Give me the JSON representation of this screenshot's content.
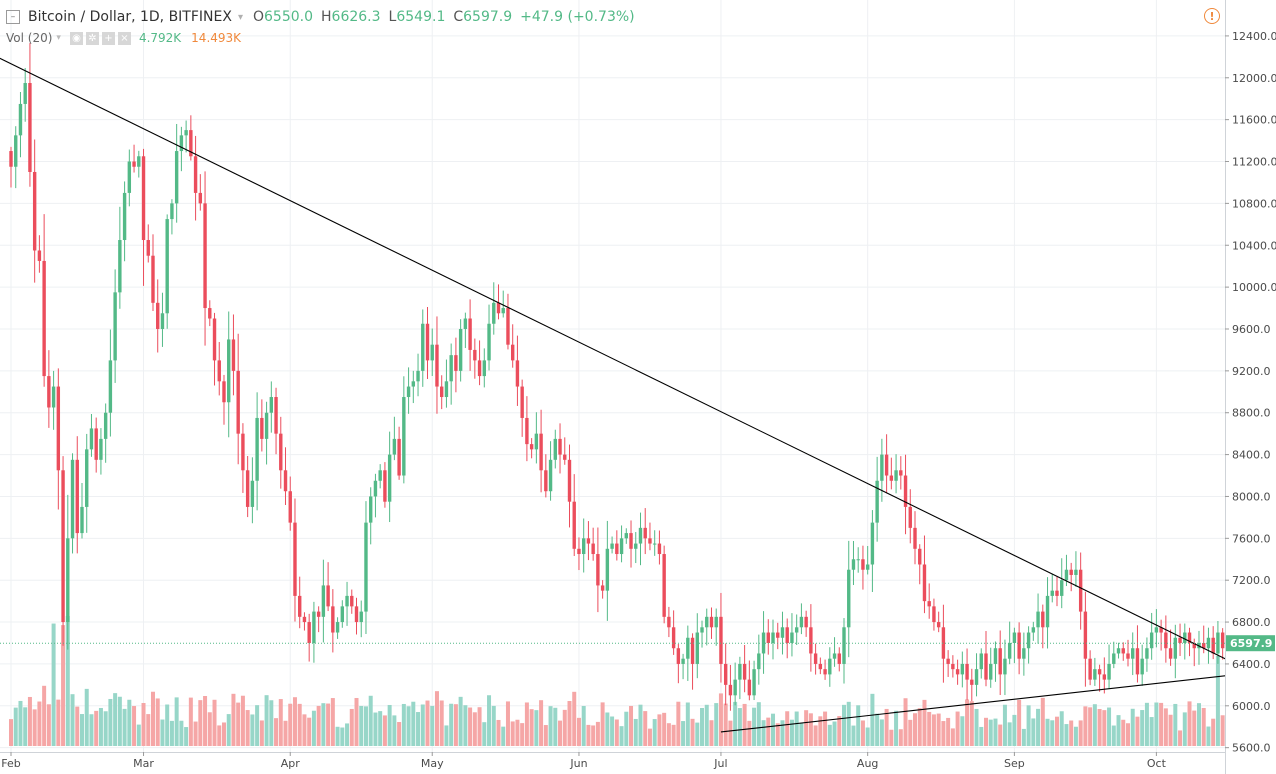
{
  "header": {
    "symbol": "Bitcoin / Dollar, 1D, BITFINEX",
    "open_label": "O",
    "open": "6550.0",
    "high_label": "H",
    "high": "6626.3",
    "low_label": "L",
    "low": "6549.1",
    "close_label": "C",
    "close": "6597.9",
    "change": "+47.9 (+0.73%)"
  },
  "volume_legend": {
    "label": "Vol (20)",
    "value": "4.792K",
    "ma_value": "14.493K",
    "buttons": [
      "eye-icon",
      "gear-icon",
      "plus-icon",
      "close-icon"
    ]
  },
  "price_tag": "6597.9",
  "colors": {
    "up": "#53b987",
    "down": "#eb4d5c",
    "vol_up": "#97d6c8",
    "vol_down": "#f5a6a6",
    "price_line": "#53b987",
    "trendline": "#000000",
    "alert": "#f0893c"
  },
  "chart_data": {
    "type": "candlestick",
    "title": "Bitcoin / Dollar, 1D, BITFINEX",
    "ylim": [
      5400,
      12500
    ],
    "y_ticks": [
      5600,
      6000,
      6400,
      6800,
      7200,
      7600,
      8000,
      8400,
      8800,
      9200,
      9600,
      10000,
      10400,
      10800,
      11200,
      11600,
      12000,
      12400
    ],
    "y_tick_labels": [
      "5600.0",
      "6000.0",
      "6400.0",
      "6800.0",
      "7200.0",
      "7600.0",
      "8000.0",
      "8400.0",
      "8800.0",
      "9200.0",
      "9600.0",
      "10000.0",
      "10400.0",
      "10800.0",
      "11200.0",
      "11600.0",
      "12000.0",
      "12400.0"
    ],
    "x_month_labels": [
      "Feb",
      "Mar",
      "Apr",
      "May",
      "Jun",
      "Jul",
      "Aug",
      "Sep",
      "Oct"
    ],
    "x_month_days": [
      0,
      28,
      59,
      89,
      120,
      150,
      181,
      212,
      242
    ],
    "x_days": 269,
    "current_price": 6597.9,
    "grid": true,
    "closes": [
      11150,
      11450,
      11750,
      11950,
      11100,
      10350,
      10250,
      9150,
      8850,
      9050,
      8250,
      6800,
      7600,
      8350,
      7650,
      7900,
      8450,
      8650,
      8350,
      8550,
      8800,
      9300,
      9950,
      10450,
      10900,
      11200,
      11150,
      11250,
      10450,
      10300,
      9850,
      9600,
      9750,
      10650,
      10800,
      11300,
      11450,
      11500,
      11250,
      10900,
      10800,
      9800,
      9700,
      9300,
      9100,
      8900,
      9500,
      9200,
      8600,
      8250,
      7900,
      8150,
      8750,
      8550,
      8800,
      8950,
      8600,
      8250,
      8050,
      7750,
      7050,
      6850,
      6800,
      6600,
      6900,
      6850,
      7150,
      6950,
      6700,
      6800,
      6950,
      7050,
      6950,
      6800,
      6900,
      7750,
      8000,
      8150,
      8250,
      7950,
      8400,
      8550,
      8200,
      8950,
      9050,
      9100,
      9200,
      9650,
      9300,
      9450,
      9050,
      8950,
      9100,
      9350,
      9200,
      9600,
      9700,
      9400,
      9300,
      9150,
      9300,
      9650,
      9850,
      9750,
      9800,
      9450,
      9300,
      9050,
      8750,
      8500,
      8450,
      8600,
      8250,
      8050,
      8350,
      8550,
      8400,
      8350,
      7950,
      7500,
      7450,
      7600,
      7550,
      7450,
      7150,
      7100,
      7500,
      7550,
      7450,
      7600,
      7650,
      7500,
      7550,
      7700,
      7600,
      7550,
      7550,
      7450,
      6850,
      6750,
      6550,
      6400,
      6450,
      6650,
      6400,
      6700,
      6750,
      6850,
      6750,
      6850,
      6400,
      6200,
      6100,
      6250,
      6400,
      6250,
      6100,
      6350,
      6500,
      6700,
      6600,
      6700,
      6650,
      6750,
      6600,
      6700,
      6750,
      6850,
      6750,
      6500,
      6400,
      6350,
      6300,
      6450,
      6500,
      6400,
      6750,
      7300,
      7400,
      7400,
      7300,
      7350,
      7750,
      8150,
      8400,
      8200,
      8150,
      8250,
      8200,
      7900,
      7700,
      7500,
      7350,
      7000,
      6950,
      6800,
      6750,
      6450,
      6400,
      6350,
      6300,
      6400,
      6250,
      6200,
      6350,
      6500,
      6250,
      6400,
      6550,
      6300,
      6450,
      6600,
      6700,
      6450,
      6550,
      6700,
      6750,
      6900,
      6750,
      7050,
      7100,
      7050,
      7200,
      7300,
      7250,
      7300,
      6900,
      6450,
      6250,
      6350,
      6300,
      6250,
      6400,
      6500,
      6550,
      6500,
      6450,
      6550,
      6300,
      6450,
      6550,
      6700,
      6750,
      6700,
      6550,
      6450,
      6650,
      6600,
      6700,
      6600,
      6550,
      6600,
      6550,
      6650,
      6500,
      6700,
      6550,
      6650,
      6750,
      6600,
      6500,
      6300,
      6350,
      6400,
      6500,
      6700,
      6750,
      6700,
      6650,
      6550,
      6600,
      6600,
      6550,
      6598
    ],
    "trendlines": [
      {
        "name": "descending-resistance",
        "points": [
          [
            -3,
            12200
          ],
          [
            275,
            6040
          ]
        ]
      },
      {
        "name": "ascending-support",
        "points": [
          [
            150,
            5750
          ],
          [
            275,
            6380
          ]
        ]
      }
    ]
  }
}
